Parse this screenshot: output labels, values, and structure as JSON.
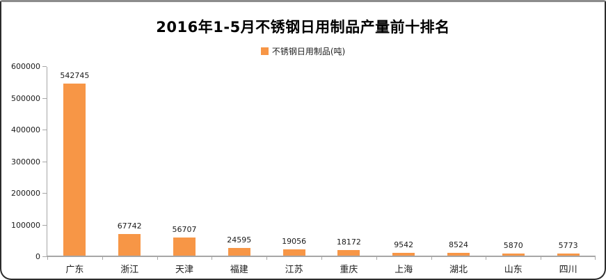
{
  "chart_data": {
    "type": "bar",
    "title": "2016年1-5月不锈钢日用制品产量前十排名",
    "legend": {
      "label": "不锈钢日用制品(吨)",
      "swatch_color": "#F79646"
    },
    "legend_position": "top",
    "categories": [
      "广东",
      "浙江",
      "天津",
      "福建",
      "江苏",
      "重庆",
      "上海",
      "湖北",
      "山东",
      "四川"
    ],
    "values": [
      542745,
      67742,
      56707,
      24595,
      19056,
      18172,
      9542,
      8524,
      5870,
      5773
    ],
    "data_labels": [
      542745,
      67742,
      56707,
      24595,
      19056,
      18172,
      9542,
      8524,
      5870,
      5773
    ],
    "bar_color": "#F79646",
    "axis_color": "#A6A6A6",
    "xlabel": "",
    "ylabel": "",
    "ylim": [
      0,
      600000
    ],
    "yticks": [
      0,
      100000,
      200000,
      300000,
      400000,
      500000,
      600000
    ],
    "grid": false
  }
}
